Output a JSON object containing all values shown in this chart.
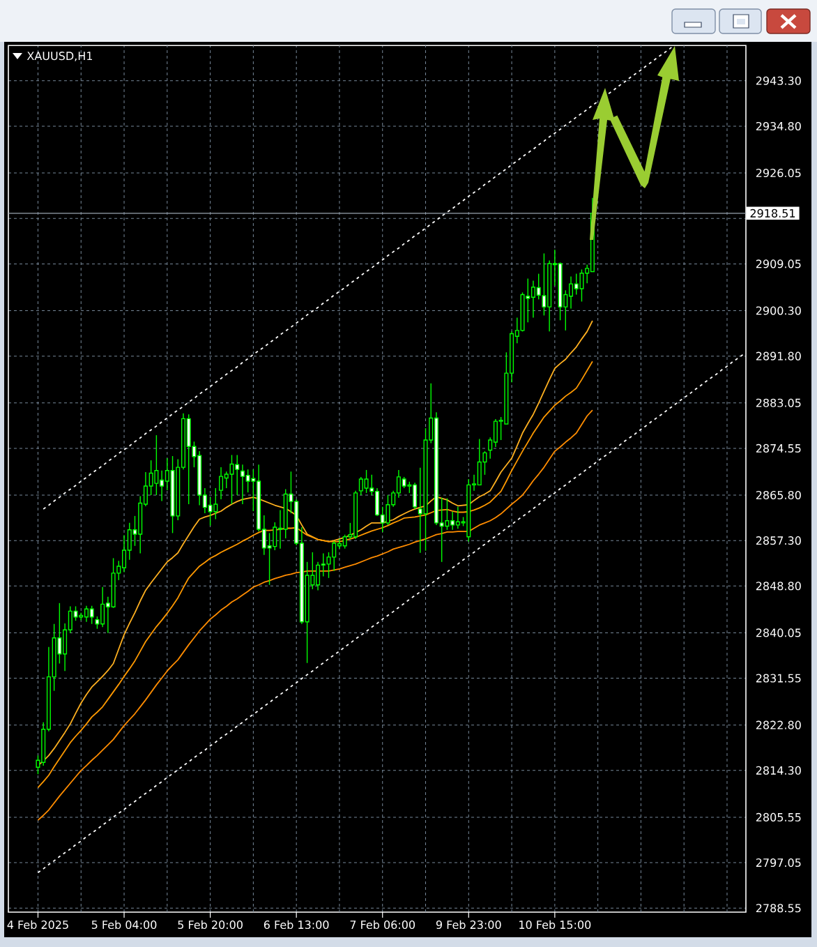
{
  "chart_data": {
    "type": "candlestick",
    "title": "XAUUSD,H1",
    "categories": [
      "4 Feb 2025",
      null,
      null,
      null,
      null,
      null,
      null,
      null,
      null,
      null,
      null,
      null,
      null,
      null,
      null,
      null,
      "5 Feb 04:00",
      null,
      null,
      null,
      null,
      null,
      null,
      null,
      null,
      null,
      null,
      null,
      null,
      null,
      null,
      null,
      "5 Feb 20:00",
      null,
      null,
      null,
      null,
      null,
      null,
      null,
      null,
      null,
      null,
      null,
      null,
      null,
      null,
      null,
      "6 Feb 13:00",
      null,
      null,
      null,
      null,
      null,
      null,
      null,
      null,
      null,
      null,
      null,
      null,
      null,
      null,
      null,
      "7 Feb 06:00",
      null,
      null,
      null,
      null,
      null,
      null,
      null,
      null,
      null,
      null,
      null,
      null,
      null,
      null,
      null,
      "9 Feb 23:00",
      null,
      null,
      null,
      null,
      null,
      null,
      null,
      null,
      null,
      null,
      null,
      null,
      null,
      null,
      null,
      "10 Feb 15:00",
      null,
      null,
      null,
      null,
      null,
      null,
      null,
      null,
      null,
      null,
      null,
      null,
      null,
      null,
      null,
      null,
      null,
      null,
      null,
      null,
      null,
      null,
      null,
      null,
      null,
      null,
      null,
      null,
      null,
      null,
      null,
      null,
      null,
      null,
      null
    ],
    "ohlc": [
      [
        2814.9,
        2817.1,
        2813.6,
        2816.2
      ],
      [
        2815.8,
        2823.3,
        2815.2,
        2822.0
      ],
      [
        2822.0,
        2837.4,
        2821.6,
        2831.8
      ],
      [
        2831.8,
        2841.7,
        2829.2,
        2839.1
      ],
      [
        2839.1,
        2845.6,
        2834.3,
        2836.1
      ],
      [
        2836.1,
        2841.8,
        2832.9,
        2840.6
      ],
      [
        2840.6,
        2845.0,
        2840.0,
        2844.1
      ],
      [
        2844.1,
        2845.0,
        2842.3,
        2843.0
      ],
      [
        2843.0,
        2843.8,
        2842.4,
        2843.3
      ],
      [
        2843.0,
        2845.1,
        2842.1,
        2844.5
      ],
      [
        2844.5,
        2845.1,
        2841.7,
        2843.0
      ],
      [
        2842.5,
        2843.1,
        2840.8,
        2841.7
      ],
      [
        2841.7,
        2848.6,
        2841.1,
        2845.4
      ],
      [
        2845.6,
        2846.8,
        2840.0,
        2844.9
      ],
      [
        2844.9,
        2854.0,
        2844.7,
        2851.2
      ],
      [
        2851.2,
        2853.5,
        2849.9,
        2852.5
      ],
      [
        2852.2,
        2858.3,
        2851.4,
        2855.5
      ],
      [
        2855.5,
        2860.6,
        2853.7,
        2859.3
      ],
      [
        2859.3,
        2861.9,
        2856.3,
        2858.5
      ],
      [
        2858.5,
        2865.6,
        2854.9,
        2864.3
      ],
      [
        2864.1,
        2870.1,
        2863.7,
        2867.5
      ],
      [
        2867.5,
        2872.3,
        2865.8,
        2869.9
      ],
      [
        2868.0,
        2877.0,
        2865.8,
        2870.4
      ],
      [
        2868.6,
        2870.4,
        2864.7,
        2867.5
      ],
      [
        2868.4,
        2872.7,
        2866.7,
        2870.4
      ],
      [
        2870.4,
        2873.1,
        2858.7,
        2861.9
      ],
      [
        2861.9,
        2872.5,
        2861.1,
        2871.0
      ],
      [
        2871.0,
        2881.1,
        2870.6,
        2880.1
      ],
      [
        2880.1,
        2880.9,
        2864.1,
        2874.9
      ],
      [
        2874.9,
        2875.8,
        2871.0,
        2873.0
      ],
      [
        2873.2,
        2874.0,
        2863.9,
        2865.8
      ],
      [
        2865.8,
        2867.1,
        2862.4,
        2863.5
      ],
      [
        2863.9,
        2865.4,
        2860.1,
        2862.7
      ],
      [
        2862.7,
        2867.1,
        2861.3,
        2864.1
      ],
      [
        2866.7,
        2871.0,
        2865.0,
        2869.3
      ],
      [
        2869.0,
        2870.2,
        2867.1,
        2869.7
      ],
      [
        2869.7,
        2873.3,
        2864.1,
        2871.6
      ],
      [
        2871.5,
        2873.3,
        2865.8,
        2870.6
      ],
      [
        2870.3,
        2871.5,
        2864.1,
        2869.3
      ],
      [
        2869.5,
        2870.6,
        2866.3,
        2868.4
      ],
      [
        2868.9,
        2870.6,
        2862.8,
        2868.4
      ],
      [
        2868.4,
        2871.5,
        2859.0,
        2859.4
      ],
      [
        2859.4,
        2862.0,
        2854.6,
        2855.9
      ],
      [
        2856.3,
        2858.7,
        2849.0,
        2855.9
      ],
      [
        2856.2,
        2860.7,
        2855.5,
        2859.8
      ],
      [
        2859.4,
        2863.0,
        2855.8,
        2859.6
      ],
      [
        2859.4,
        2866.9,
        2857.7,
        2866.0
      ],
      [
        2866.0,
        2870.2,
        2862.4,
        2864.6
      ],
      [
        2864.6,
        2865.0,
        2856.4,
        2856.8
      ],
      [
        2856.8,
        2859.8,
        2841.7,
        2842.1
      ],
      [
        2842.1,
        2853.3,
        2834.4,
        2850.8
      ],
      [
        2849.0,
        2855.1,
        2848.2,
        2850.8
      ],
      [
        2849.0,
        2853.3,
        2848.0,
        2852.7
      ],
      [
        2852.9,
        2854.9,
        2850.6,
        2852.7
      ],
      [
        2852.9,
        2855.1,
        2850.3,
        2854.2
      ],
      [
        2854.2,
        2857.2,
        2851.6,
        2856.8
      ],
      [
        2856.3,
        2857.6,
        2855.8,
        2856.7
      ],
      [
        2856.3,
        2858.4,
        2855.8,
        2858.0
      ],
      [
        2858.0,
        2860.6,
        2857.6,
        2858.4
      ],
      [
        2858.0,
        2866.6,
        2857.6,
        2866.2
      ],
      [
        2866.6,
        2869.2,
        2865.8,
        2868.8
      ],
      [
        2867.1,
        2870.5,
        2866.2,
        2868.8
      ],
      [
        2867.1,
        2869.6,
        2865.8,
        2866.5
      ],
      [
        2866.5,
        2867.1,
        2861.9,
        2862.1
      ],
      [
        2862.1,
        2863.6,
        2858.9,
        2860.6
      ],
      [
        2860.6,
        2865.8,
        2860.2,
        2864.0
      ],
      [
        2864.0,
        2866.6,
        2863.6,
        2866.2
      ],
      [
        2866.2,
        2870.5,
        2865.3,
        2869.2
      ],
      [
        2868.8,
        2869.2,
        2867.1,
        2867.5
      ],
      [
        2867.5,
        2868.3,
        2866.2,
        2867.7
      ],
      [
        2867.7,
        2868.1,
        2863.2,
        2863.6
      ],
      [
        2863.2,
        2870.9,
        2855.0,
        2862.3
      ],
      [
        2862.3,
        2878.3,
        2855.4,
        2876.1
      ],
      [
        2876.1,
        2886.7,
        2875.5,
        2880.2
      ],
      [
        2880.2,
        2881.3,
        2860.2,
        2860.6
      ],
      [
        2860.6,
        2865.3,
        2853.3,
        2860.0
      ],
      [
        2860.0,
        2865.2,
        2859.3,
        2861.0
      ],
      [
        2861.0,
        2862.7,
        2859.3,
        2860.2
      ],
      [
        2860.2,
        2863.6,
        2859.5,
        2860.8
      ],
      [
        2860.6,
        2861.7,
        2860.0,
        2860.8
      ],
      [
        2858.0,
        2868.8,
        2857.1,
        2867.7
      ],
      [
        2867.7,
        2869.6,
        2866.6,
        2867.9
      ],
      [
        2867.7,
        2876.3,
        2867.7,
        2872.0
      ],
      [
        2872.0,
        2874.0,
        2869.6,
        2873.7
      ],
      [
        2874.2,
        2876.6,
        2872.6,
        2876.1
      ],
      [
        2875.7,
        2880.0,
        2874.8,
        2879.6
      ],
      [
        2879.6,
        2880.4,
        2876.1,
        2879.8
      ],
      [
        2879.1,
        2892.5,
        2879.1,
        2888.6
      ],
      [
        2888.6,
        2896.4,
        2886.9,
        2896.0
      ],
      [
        2895.5,
        2899.0,
        2894.2,
        2896.6
      ],
      [
        2896.6,
        2903.7,
        2896.4,
        2903.3
      ],
      [
        2903.0,
        2906.3,
        2898.1,
        2902.6
      ],
      [
        2902.8,
        2905.9,
        2899.0,
        2904.7
      ],
      [
        2904.6,
        2907.2,
        2902.4,
        2903.2
      ],
      [
        2903.1,
        2911.0,
        2899.4,
        2901.0
      ],
      [
        2901.0,
        2909.7,
        2896.4,
        2909.1
      ],
      [
        2908.9,
        2911.7,
        2905.0,
        2909.1
      ],
      [
        2909.1,
        2909.3,
        2898.5,
        2901.0
      ],
      [
        2901.0,
        2904.1,
        2896.6,
        2903.3
      ],
      [
        2903.0,
        2906.7,
        2900.7,
        2905.3
      ],
      [
        2905.3,
        2907.2,
        2903.3,
        2904.4
      ],
      [
        2904.4,
        2908.0,
        2902.0,
        2907.3
      ],
      [
        2907.3,
        2908.9,
        2905.4,
        2908.2
      ],
      [
        2907.6,
        2921.4,
        2907.6,
        2918.51
      ],
      null,
      null,
      null,
      null,
      null,
      null,
      null,
      null,
      null,
      null,
      null,
      null,
      null,
      null,
      null,
      null,
      null,
      null,
      null,
      null,
      null,
      null,
      null,
      null,
      null,
      null,
      null,
      null
    ],
    "color": "#00ff00",
    "colors": [
      "#000000",
      "#000000",
      "#000000",
      "#000000",
      "#ffffff",
      "#000000",
      "#000000",
      "#ffffff",
      "#000000",
      "#000000",
      "#ffffff",
      "#ffffff",
      "#000000",
      "#ffffff",
      "#000000",
      "#000000",
      "#000000",
      "#000000",
      "#ffffff",
      "#000000",
      "#000000",
      "#000000",
      "#000000",
      "#ffffff",
      "#000000",
      "#ffffff",
      "#000000",
      "#000000",
      "#ffffff",
      "#ffffff",
      "#ffffff",
      "#ffffff",
      "#ffffff",
      "#000000",
      "#000000",
      "#000000",
      "#000000",
      "#ffffff",
      "#ffffff",
      "#ffffff",
      "#ffffff",
      "#ffffff",
      "#ffffff",
      "#ffffff",
      "#000000",
      "#000000",
      "#000000",
      "#ffffff",
      "#ffffff",
      "#ffffff",
      "#000000",
      "#000000",
      "#000000",
      "#ffffff",
      "#000000",
      "#000000",
      "#000000",
      "#000000",
      "#000000",
      "#000000",
      "#000000",
      "#000000",
      "#ffffff",
      "#ffffff",
      "#ffffff",
      "#000000",
      "#000000",
      "#000000",
      "#ffffff",
      "#000000",
      "#ffffff",
      "#ffffff",
      "#000000",
      "#000000",
      "#ffffff",
      "#ffffff",
      "#000000",
      "#ffffff",
      "#000000",
      "#000000",
      "#000000",
      "#000000",
      "#000000",
      "#000000",
      "#000000",
      "#000000",
      "#000000",
      "#000000",
      "#000000",
      "#000000",
      "#000000",
      "#ffffff",
      "#000000",
      "#ffffff",
      "#ffffff",
      "#000000",
      "#000000",
      "#ffffff",
      "#000000",
      "#000000",
      "#ffffff",
      "#000000",
      "#000000",
      "#000000",
      null,
      null,
      null,
      null,
      null,
      null,
      null,
      null,
      null,
      null,
      null,
      null,
      null,
      null,
      null,
      null,
      null,
      null,
      null,
      null,
      null,
      null,
      null,
      null,
      null,
      null,
      null,
      null
    ],
    "series": [
      {
        "type": "line",
        "color": "#ffb020",
        "values": [
          2815.2,
          2816.1,
          2817.1,
          2818.4,
          2819.9,
          2821.4,
          2823.0,
          2825.0,
          2826.9,
          2828.5,
          2829.9,
          2830.9,
          2831.9,
          2833.0,
          2834.3,
          2837.0,
          2839.7,
          2841.8,
          2843.8,
          2846.0,
          2848.0,
          2849.4,
          2850.7,
          2852.0,
          2853.3,
          2854.1,
          2855.0,
          2856.7,
          2858.3,
          2859.9,
          2861.3,
          2861.7,
          2862.0,
          2862.4,
          2862.8,
          2863.5,
          2864.1,
          2864.6,
          2865.0,
          2865.2,
          2865.4,
          2865.1,
          2864.7,
          2864.3,
          2863.9,
          2863.6,
          2863.3,
          2862.7,
          2862.0,
          2860.2,
          2858.5,
          2858.0,
          2857.5,
          2857.3,
          2857.1,
          2857.3,
          2857.6,
          2857.9,
          2858.3,
          2858.8,
          2859.3,
          2860.0,
          2860.6,
          2860.6,
          2860.6,
          2860.9,
          2861.2,
          2861.8,
          2862.3,
          2862.8,
          2863.2,
          2863.5,
          2863.8,
          2864.7,
          2865.5,
          2865.2,
          2864.9,
          2864.3,
          2863.8,
          2863.9,
          2864.0,
          2864.8,
          2865.5,
          2866.0,
          2866.6,
          2868.3,
          2870.1,
          2871.4,
          2872.7,
          2875.0,
          2877.4,
          2879.2,
          2880.9,
          2883.0,
          2885.2,
          2887.4,
          2889.5,
          2890.4,
          2891.2,
          2892.4,
          2893.5,
          2895.0,
          2896.4,
          2898.4,
          null,
          null,
          null,
          null,
          null,
          null,
          null,
          null,
          null,
          null,
          null,
          null,
          null,
          null,
          null,
          null,
          null,
          null,
          null,
          null,
          null,
          null,
          null,
          null,
          null,
          null,
          null,
          null
        ]
      },
      {
        "type": "line",
        "color": "#ff9900",
        "values": [
          2811.1,
          2812.2,
          2813.4,
          2815.0,
          2816.5,
          2818.0,
          2819.5,
          2820.7,
          2821.8,
          2823.0,
          2824.3,
          2825.2,
          2826.2,
          2827.6,
          2829.0,
          2830.4,
          2831.9,
          2833.3,
          2834.8,
          2836.6,
          2838.4,
          2839.8,
          2841.2,
          2842.4,
          2843.7,
          2845.1,
          2846.6,
          2848.5,
          2850.3,
          2851.4,
          2852.5,
          2853.2,
          2854.0,
          2854.5,
          2855.1,
          2855.6,
          2856.1,
          2856.6,
          2857.2,
          2857.7,
          2858.3,
          2858.8,
          2859.2,
          2859.2,
          2859.3,
          2859.4,
          2859.6,
          2859.6,
          2859.7,
          2859.0,
          2858.3,
          2857.9,
          2857.5,
          2857.3,
          2857.1,
          2857.1,
          2857.1,
          2857.3,
          2857.6,
          2857.9,
          2858.3,
          2858.7,
          2859.1,
          2859.4,
          2859.7,
          2860.1,
          2860.6,
          2861.0,
          2861.5,
          2861.6,
          2861.7,
          2861.9,
          2862.1,
          2862.5,
          2862.9,
          2863.0,
          2863.1,
          2862.8,
          2862.6,
          2862.6,
          2862.7,
          2863.0,
          2863.4,
          2863.9,
          2864.5,
          2865.5,
          2866.5,
          2868.4,
          2870.4,
          2872.2,
          2874.0,
          2875.7,
          2877.4,
          2878.9,
          2880.4,
          2881.5,
          2882.6,
          2883.4,
          2884.3,
          2885.0,
          2885.8,
          2887.4,
          2889.1,
          2890.8,
          null,
          null,
          null,
          null,
          null,
          null,
          null,
          null,
          null,
          null,
          null,
          null,
          null,
          null,
          null,
          null,
          null,
          null,
          null,
          null,
          null,
          null,
          null,
          null,
          null,
          null,
          null,
          null
        ]
      },
      {
        "type": "line",
        "color": "#ff8c00",
        "values": [
          2805.0,
          2805.9,
          2806.9,
          2808.2,
          2809.5,
          2810.7,
          2811.9,
          2813.1,
          2814.3,
          2815.2,
          2816.2,
          2817.1,
          2818.1,
          2819.1,
          2820.1,
          2821.4,
          2822.7,
          2823.8,
          2824.9,
          2826.2,
          2827.5,
          2828.9,
          2830.3,
          2831.6,
          2832.9,
          2834.0,
          2835.0,
          2836.4,
          2837.8,
          2839.1,
          2840.4,
          2841.5,
          2842.6,
          2843.4,
          2844.3,
          2845.0,
          2845.8,
          2846.4,
          2847.1,
          2847.8,
          2848.6,
          2849.0,
          2849.5,
          2849.8,
          2850.2,
          2850.5,
          2850.8,
          2851.0,
          2851.3,
          2851.4,
          2851.6,
          2851.6,
          2851.6,
          2851.6,
          2851.6,
          2851.8,
          2852.0,
          2852.3,
          2852.6,
          2852.9,
          2853.3,
          2853.7,
          2854.1,
          2854.4,
          2854.8,
          2855.2,
          2855.7,
          2856.0,
          2856.3,
          2856.6,
          2857.0,
          2857.3,
          2857.6,
          2858.0,
          2858.4,
          2858.6,
          2858.9,
          2858.9,
          2859.0,
          2859.0,
          2859.0,
          2859.6,
          2860.2,
          2860.6,
          2861.0,
          2861.6,
          2862.3,
          2863.2,
          2864.1,
          2864.9,
          2865.8,
          2867.1,
          2868.5,
          2869.7,
          2871.0,
          2872.5,
          2874.0,
          2874.8,
          2875.7,
          2876.5,
          2877.4,
          2879.0,
          2880.6,
          2881.7,
          null,
          null,
          null,
          null,
          null,
          null,
          null,
          null,
          null,
          null,
          null,
          null,
          null,
          null,
          null,
          null,
          null,
          null,
          null,
          null,
          null,
          null,
          null,
          null,
          null,
          null,
          null,
          null
        ]
      },
      {
        "type": "line",
        "color": "#ffffff",
        "line_style": "dashed",
        "values": [
          null,
          2863.2,
          2863.9,
          2864.7,
          2865.4,
          2866.2,
          2866.9,
          2867.6,
          2868.4,
          2869.1,
          2869.9,
          2870.6,
          2871.3,
          2872.1,
          2872.8,
          2873.6,
          2874.3,
          2875.0,
          2875.8,
          2876.5,
          2877.3,
          2878.0,
          2878.7,
          2879.5,
          2880.2,
          2881.0,
          2881.7,
          2882.4,
          2883.2,
          2883.9,
          2884.7,
          2885.4,
          2886.1,
          2886.9,
          2887.6,
          2888.4,
          2889.1,
          2889.8,
          2890.6,
          2891.3,
          2892.1,
          2892.8,
          2893.5,
          2894.3,
          2895.0,
          2895.8,
          2896.5,
          2897.2,
          2898.0,
          2898.7,
          2899.5,
          2900.2,
          2900.9,
          2901.7,
          2902.4,
          2903.2,
          2903.9,
          2904.6,
          2905.4,
          2906.1,
          2906.9,
          2907.6,
          2908.3,
          2909.1,
          2909.8,
          2910.6,
          2911.3,
          2912.0,
          2912.8,
          2913.5,
          2914.3,
          2915.0,
          2915.7,
          2916.5,
          2917.2,
          2918.0,
          2918.7,
          2919.4,
          2920.2,
          2920.9,
          2921.7,
          2922.4,
          2923.1,
          2923.9,
          2924.6,
          2925.4,
          2926.1,
          2926.8,
          2927.6,
          2928.3,
          2929.1,
          2929.8,
          2930.5,
          2931.3,
          2932.0,
          2932.8,
          2933.5,
          2934.2,
          2935.0,
          2935.7,
          2936.5,
          2937.2,
          2937.9,
          2938.7,
          2939.4,
          null,
          2940.9,
          2941.6,
          2942.4,
          2943.1,
          2943.9,
          2944.6,
          2945.3,
          2946.1,
          2946.8,
          2947.6,
          2948.3,
          2949.0,
          2949.8,
          null,
          null,
          null,
          null,
          null,
          null,
          null,
          null,
          null,
          null,
          null,
          null,
          null
        ]
      },
      {
        "type": "line",
        "color": "#ffffff",
        "line_style": "dashed",
        "values": [
          2795.2,
          2795.9,
          2796.7,
          2797.4,
          2798.2,
          2798.9,
          2799.6,
          2800.4,
          2801.1,
          2801.9,
          2802.6,
          2803.3,
          2804.1,
          2804.8,
          2805.6,
          2806.3,
          2807.0,
          2807.8,
          2808.5,
          2809.3,
          2810.0,
          2810.7,
          2811.5,
          2812.2,
          2813.0,
          2813.7,
          2814.4,
          2815.2,
          2815.9,
          2816.7,
          2817.4,
          2818.1,
          2818.9,
          2819.6,
          2820.4,
          2821.1,
          2821.8,
          2822.6,
          2823.3,
          2824.1,
          2824.8,
          2825.5,
          2826.3,
          2827.0,
          2827.8,
          2828.5,
          2829.2,
          2830.0,
          2830.7,
          2831.5,
          2832.2,
          2832.9,
          2833.7,
          2834.4,
          2835.2,
          2835.9,
          2836.6,
          2837.4,
          2838.1,
          2838.9,
          2839.6,
          2840.3,
          2841.1,
          2841.8,
          2842.6,
          2843.3,
          2844.0,
          2844.8,
          2845.5,
          2846.3,
          2847.0,
          2847.7,
          2848.5,
          2849.2,
          2850.0,
          2850.7,
          2851.4,
          2852.2,
          2852.9,
          2853.7,
          2854.4,
          2855.1,
          2855.9,
          2856.6,
          2857.4,
          2858.1,
          2858.8,
          2859.6,
          2860.3,
          2861.1,
          2861.8,
          2862.5,
          2863.3,
          2864.0,
          2864.8,
          2865.5,
          2866.2,
          2867.0,
          2867.7,
          2868.5,
          2869.2,
          2869.9,
          2870.7,
          2871.4,
          2872.2,
          2872.9,
          2873.6,
          2874.4,
          2875.1,
          2875.9,
          2876.6,
          2877.3,
          2878.1,
          2878.8,
          2879.6,
          2880.3,
          2881.0,
          2881.8,
          2882.5,
          2883.3,
          2884.0,
          2884.7,
          2885.5,
          2886.2,
          2887.0,
          2887.7,
          2888.4,
          2889.2,
          2889.9,
          2890.7,
          2891.4,
          2892.1
        ]
      }
    ],
    "ylim": [
      2787.8,
      2949.9
    ],
    "yticks": [
      {
        "value": 2788.55,
        "label": "2788.55"
      },
      {
        "value": 2797.05,
        "label": "2797.05"
      },
      {
        "value": 2805.55,
        "label": "2805.55"
      },
      {
        "value": 2814.3,
        "label": "2814.30"
      },
      {
        "value": 2822.8,
        "label": "2822.80"
      },
      {
        "value": 2831.55,
        "label": "2831.55"
      },
      {
        "value": 2840.05,
        "label": "2840.05"
      },
      {
        "value": 2848.8,
        "label": "2848.80"
      },
      {
        "value": 2857.3,
        "label": "2857.30"
      },
      {
        "value": 2865.8,
        "label": "2865.80"
      },
      {
        "value": 2874.55,
        "label": "2874.55"
      },
      {
        "value": 2883.05,
        "label": "2883.05"
      },
      {
        "value": 2891.8,
        "label": "2891.80"
      },
      {
        "value": 2900.3,
        "label": "2900.30"
      },
      {
        "value": 2909.05,
        "label": "2909.05"
      },
      {
        "value": 2917.55,
        "label": null
      },
      {
        "value": 2926.05,
        "label": "2926.05"
      },
      {
        "value": 2934.8,
        "label": "2934.80"
      },
      {
        "value": 2943.3,
        "label": "2943.30"
      }
    ],
    "grid": true,
    "ref_lines": [
      {
        "axis": "y",
        "value": 2918.51,
        "label": "2918.51",
        "color": "#9aa4b0"
      }
    ]
  }
}
